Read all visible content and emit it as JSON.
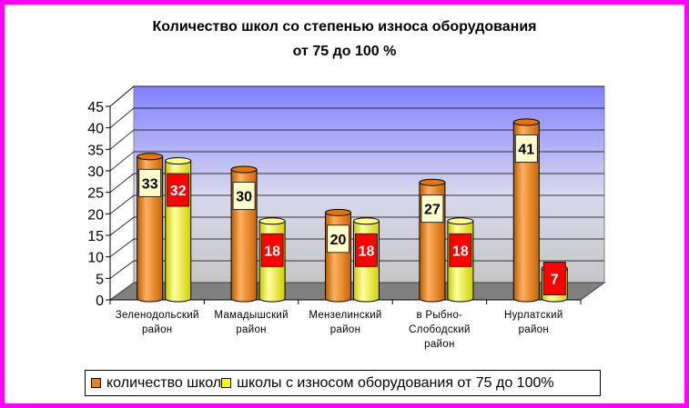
{
  "chart_data": {
    "type": "bar",
    "title": [
      "Количество школ со степенью износа оборудования",
      "от 75 до 100 %"
    ],
    "categories": [
      [
        "Зеленодольский",
        "район"
      ],
      [
        "Мамадышский",
        "район"
      ],
      [
        "Мензелинский",
        "район"
      ],
      [
        "в Рыбно-",
        "Слободский",
        "район"
      ],
      [
        "Нурлатский",
        "район"
      ]
    ],
    "series": [
      {
        "name": "количество школ",
        "values": [
          33,
          30,
          20,
          27,
          41
        ],
        "color": "#ff8000",
        "label_bg": "#ffffcc",
        "label_color": "#000000"
      },
      {
        "name": "школы с износом оборудования от 75 до 100%",
        "values": [
          32,
          18,
          18,
          18,
          7
        ],
        "color": "#ffff00",
        "label_bg": "#ff0000",
        "label_color": "#ffffff"
      }
    ],
    "yticks": [
      "0",
      "5",
      "10",
      "15",
      "20",
      "25",
      "30",
      "35",
      "40",
      "45"
    ],
    "ylim": [
      0,
      45
    ],
    "grid": true,
    "legend_position": "bottom",
    "colors": {
      "frame": "#ff00ff",
      "wall_top": "#8080ff",
      "wall_bottom": "#c0c0c0",
      "floor": "#808080"
    }
  }
}
